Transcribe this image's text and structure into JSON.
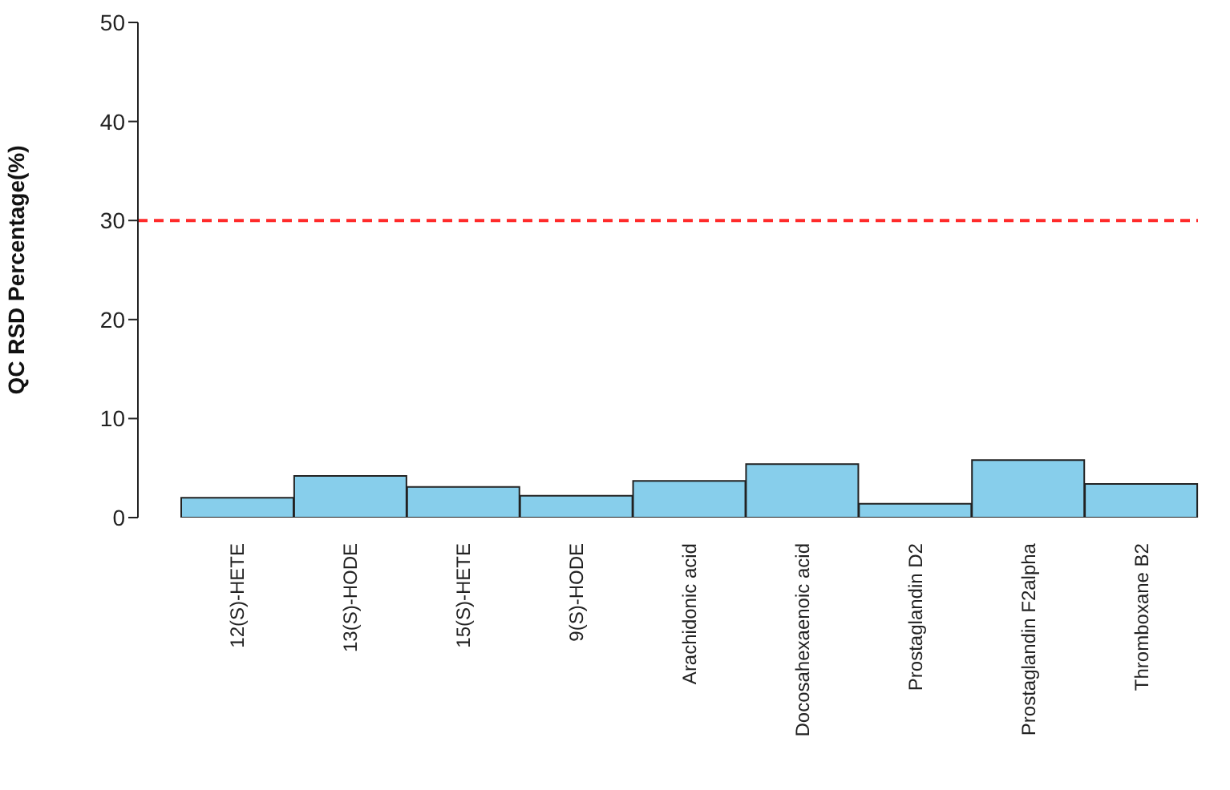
{
  "chart_data": {
    "type": "bar",
    "ylabel": "QC RSD Percentage(%)",
    "categories": [
      "12(S)-HETE",
      "13(S)-HODE",
      "15(S)-HETE",
      "9(S)-HODE",
      "Arachidonic acid",
      "Docosahexaenoic acid",
      "Prostaglandin D2",
      "Prostaglandin F2alpha",
      "Thromboxane B2"
    ],
    "values": [
      2.0,
      4.2,
      3.1,
      2.2,
      3.7,
      5.4,
      1.4,
      5.8,
      3.4
    ],
    "color": "#87ceeb",
    "ylim": [
      0,
      50
    ],
    "yticks": [
      0,
      10,
      20,
      30,
      40,
      50
    ],
    "ref_lines": [
      {
        "axis": "y",
        "value": 30,
        "label": null,
        "color": "#ff2a2a",
        "line_style": "dashed"
      }
    ],
    "grid": false,
    "legend": false
  }
}
